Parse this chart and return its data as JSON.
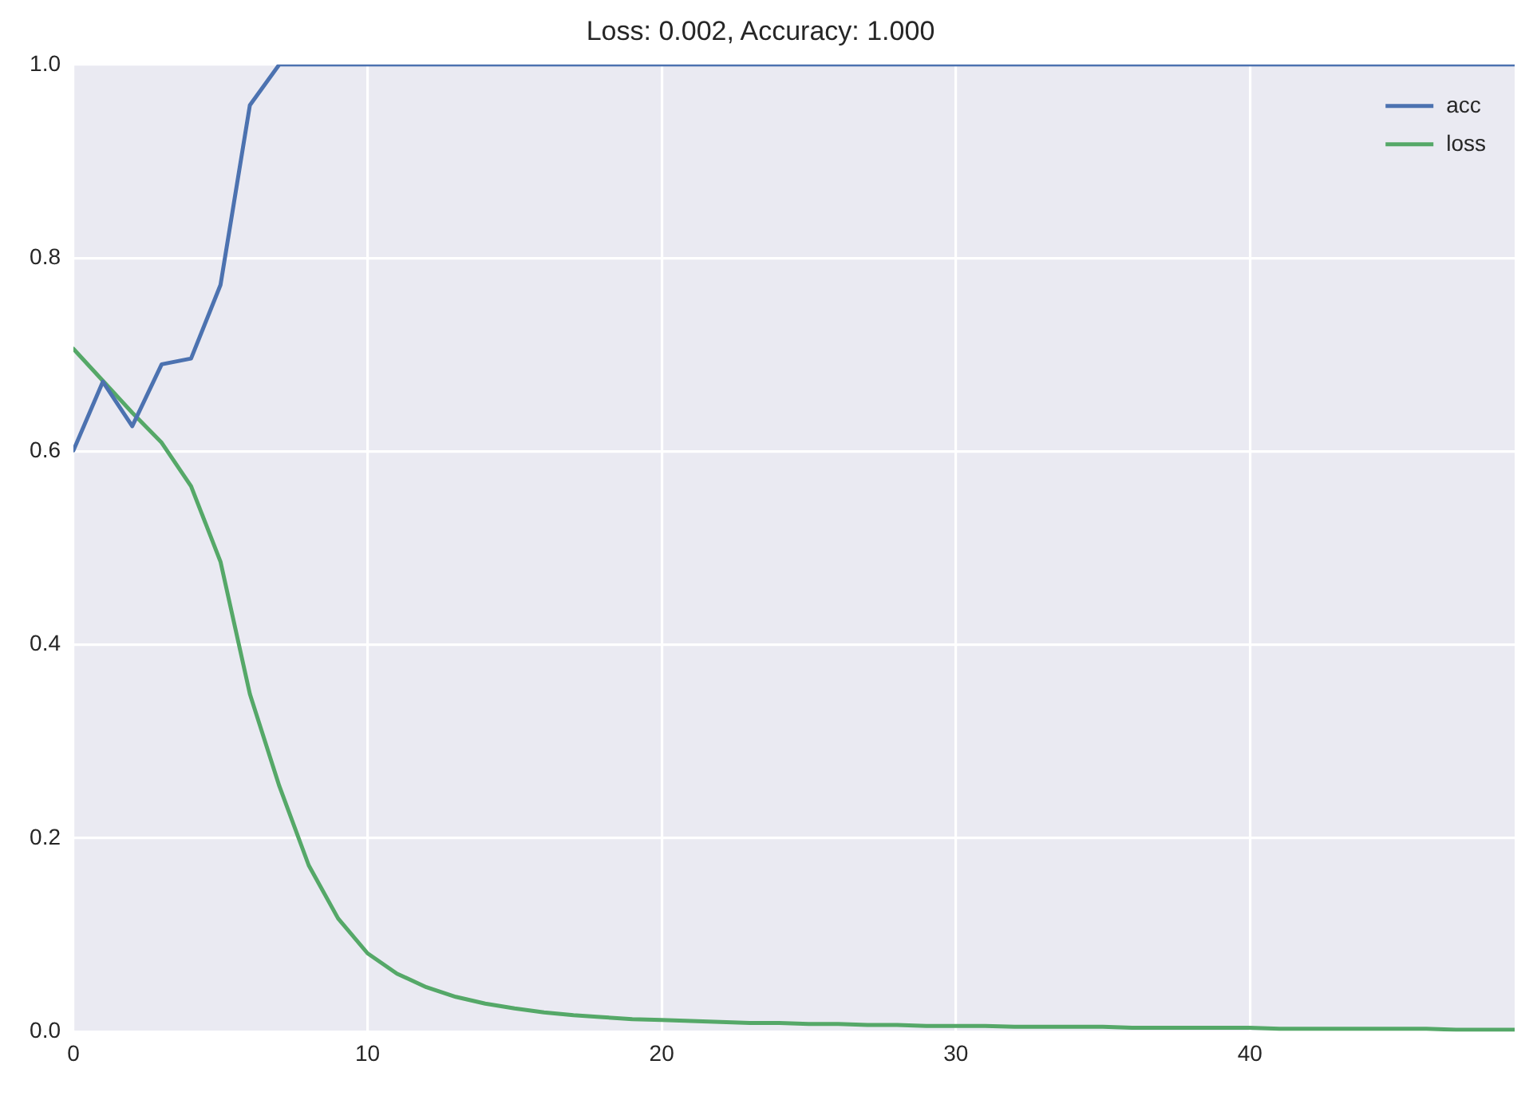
{
  "chart_data": {
    "type": "line",
    "title": "Loss: 0.002, Accuracy: 1.000",
    "x": [
      0,
      1,
      2,
      3,
      4,
      5,
      6,
      7,
      8,
      9,
      10,
      11,
      12,
      13,
      14,
      15,
      16,
      17,
      18,
      19,
      20,
      21,
      22,
      23,
      24,
      25,
      26,
      27,
      28,
      29,
      30,
      31,
      32,
      33,
      34,
      35,
      36,
      37,
      38,
      39,
      40,
      41,
      42,
      43,
      44,
      45,
      46,
      47,
      48,
      49
    ],
    "series": [
      {
        "name": "acc",
        "color": "#4c72b0",
        "values": [
          0.601,
          0.672,
          0.626,
          0.69,
          0.696,
          0.772,
          0.958,
          1.0,
          1.0,
          1.0,
          1.0,
          1.0,
          1.0,
          1.0,
          1.0,
          1.0,
          1.0,
          1.0,
          1.0,
          1.0,
          1.0,
          1.0,
          1.0,
          1.0,
          1.0,
          1.0,
          1.0,
          1.0,
          1.0,
          1.0,
          1.0,
          1.0,
          1.0,
          1.0,
          1.0,
          1.0,
          1.0,
          1.0,
          1.0,
          1.0,
          1.0,
          1.0,
          1.0,
          1.0,
          1.0,
          1.0,
          1.0,
          1.0,
          1.0,
          1.0
        ]
      },
      {
        "name": "loss",
        "color": "#55a868",
        "values": [
          0.706,
          0.673,
          0.64,
          0.609,
          0.564,
          0.486,
          0.349,
          0.254,
          0.172,
          0.117,
          0.081,
          0.06,
          0.046,
          0.036,
          0.029,
          0.024,
          0.02,
          0.017,
          0.015,
          0.013,
          0.012,
          0.011,
          0.01,
          0.009,
          0.009,
          0.008,
          0.008,
          0.007,
          0.007,
          0.006,
          0.006,
          0.006,
          0.005,
          0.005,
          0.005,
          0.005,
          0.004,
          0.004,
          0.004,
          0.004,
          0.004,
          0.003,
          0.003,
          0.003,
          0.003,
          0.003,
          0.003,
          0.002,
          0.002,
          0.002
        ]
      }
    ],
    "xlim": [
      0,
      49
    ],
    "xticks": [
      0,
      10,
      20,
      30,
      40
    ],
    "ylim": [
      0,
      1.0
    ],
    "yticks": [
      {
        "value": 0,
        "label": "0.0"
      },
      {
        "value": 0.2,
        "label": "0.2"
      },
      {
        "value": 0.4,
        "label": "0.4"
      },
      {
        "value": 0.6,
        "label": "0.6"
      },
      {
        "value": 0.8,
        "label": "0.8"
      },
      {
        "value": 1.0,
        "label": "1.0"
      }
    ],
    "grid": true,
    "legend": "top right",
    "marker": "none",
    "line_style": "solid"
  }
}
